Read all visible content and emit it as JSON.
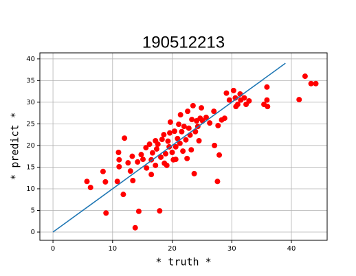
{
  "chart_data": {
    "type": "scatter",
    "title": "190512213",
    "x_label": "* truth *",
    "y_label": "* predict *",
    "xlim": [
      -2.2,
      46
    ],
    "ylim": [
      -1.9,
      41.4
    ],
    "xticks": [
      0,
      10,
      20,
      30,
      40
    ],
    "yticks": [
      0,
      5,
      10,
      15,
      20,
      25,
      30,
      35,
      40
    ],
    "grid": true,
    "series": [
      {
        "type": "scatter",
        "color": "#ff0000",
        "x": [
          5.7,
          6.3,
          8.4,
          8.8,
          8.9,
          10.8,
          11,
          11.1,
          11.1,
          12,
          11.8,
          12.6,
          13,
          13.4,
          13.3,
          13.8,
          14.4,
          14.2,
          14.8,
          15.1,
          15.6,
          15.7,
          16.2,
          16.5,
          16.5,
          16.7,
          17.2,
          17.4,
          17.9,
          17.6,
          18.1,
          18.6,
          18.7,
          18.9,
          19.1,
          19.3,
          19.6,
          19.7,
          20,
          20.2,
          20.4,
          20.6,
          20.9,
          21.1,
          21.3,
          21.6,
          21.8,
          22,
          22.3,
          22.5,
          22.6,
          22.8,
          23,
          23.2,
          23.3,
          23.5,
          23.7,
          23.9,
          24.1,
          24.3,
          24.5,
          24.7,
          24.9,
          25.1,
          26.3,
          27,
          27.1,
          27.6,
          27.9,
          27.7,
          28.3,
          28.8,
          29.1,
          29.6,
          30.3,
          30.6,
          30.7,
          31,
          31.4,
          31.5,
          32.1,
          32.4,
          32.9,
          35.4,
          35.9,
          35.9,
          36,
          41.3,
          42.3,
          43.3,
          44.1,
          25.7,
          20.6,
          19.5,
          17.2,
          21.4,
          18.3
        ],
        "values": [
          11.7,
          10.3,
          14,
          11.6,
          4.4,
          11.7,
          18.4,
          16.7,
          15.1,
          21.7,
          8.7,
          16,
          14.1,
          11.9,
          17.5,
          1,
          4.8,
          16.2,
          17.9,
          16.8,
          19.5,
          14.8,
          20.3,
          13.3,
          16.7,
          18.3,
          15.4,
          19.2,
          4.9,
          20.3,
          17.3,
          22.5,
          15.9,
          18.1,
          15.4,
          21,
          22.9,
          25.4,
          18.4,
          16.7,
          23.3,
          16.8,
          21.6,
          24.9,
          20.5,
          23.2,
          18.7,
          24.4,
          21.3,
          17,
          27.9,
          24,
          22.4,
          19,
          26,
          29.2,
          13.5,
          23.2,
          25.7,
          24.4,
          21.1,
          26.3,
          28.7,
          25.7,
          25.2,
          27.9,
          20,
          11.7,
          17.8,
          24.6,
          25.9,
          26.3,
          32.1,
          30.5,
          32.7,
          31,
          29,
          29.5,
          31.9,
          30.5,
          31,
          29.5,
          30.3,
          29.5,
          33.5,
          30.5,
          29,
          30.6,
          36,
          34.3,
          34.3,
          26.5,
          19.7,
          19.7,
          21.1,
          27.1,
          21.4
        ]
      },
      {
        "type": "line",
        "color": "#1f77b4",
        "x": [
          0,
          39
        ],
        "values": [
          0,
          39
        ]
      }
    ]
  }
}
